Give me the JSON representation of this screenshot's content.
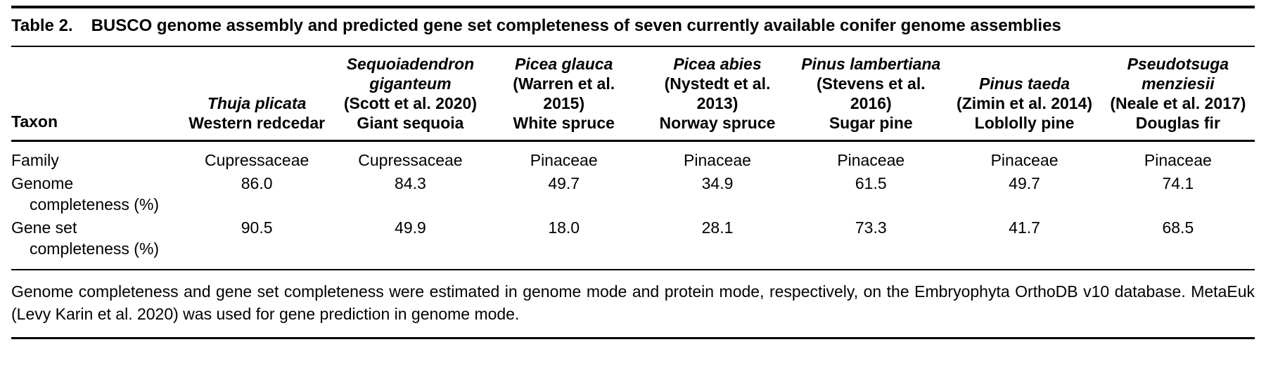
{
  "table": {
    "label": "Table 2.",
    "title": "BUSCO genome assembly and predicted gene set completeness of seven currently available conifer genome assemblies",
    "row_header": "Taxon",
    "columns": [
      {
        "scientific_name": "Thuja plicata",
        "citation": "",
        "common_name": "Western redcedar"
      },
      {
        "scientific_name": "Sequoiadendron giganteum",
        "citation": "(Scott et al. 2020)",
        "common_name": "Giant sequoia"
      },
      {
        "scientific_name": "Picea glauca",
        "citation": "(Warren et al. 2015)",
        "common_name": "White spruce"
      },
      {
        "scientific_name": "Picea abies",
        "citation": "(Nystedt et al. 2013)",
        "common_name": "Norway spruce"
      },
      {
        "scientific_name": "Pinus lambertiana",
        "citation": "(Stevens et al. 2016)",
        "common_name": "Sugar pine"
      },
      {
        "scientific_name": "Pinus taeda",
        "citation": "(Zimin et al. 2014)",
        "common_name": "Loblolly pine"
      },
      {
        "scientific_name": "Pseudotsuga menziesii",
        "citation": "(Neale et al. 2017)",
        "common_name": "Douglas fir"
      }
    ],
    "rows": [
      {
        "label": "Family",
        "values": [
          "Cupressaceae",
          "Cupressaceae",
          "Pinaceae",
          "Pinaceae",
          "Pinaceae",
          "Pinaceae",
          "Pinaceae"
        ]
      },
      {
        "label": "Genome completeness (%)",
        "values": [
          "86.0",
          "84.3",
          "49.7",
          "34.9",
          "61.5",
          "49.7",
          "74.1"
        ]
      },
      {
        "label": "Gene set completeness (%)",
        "values": [
          "90.5",
          "49.9",
          "18.0",
          "28.1",
          "73.3",
          "41.7",
          "68.5"
        ]
      }
    ],
    "footnote": "Genome completeness and gene set completeness were estimated in genome mode and protein mode, respectively, on the Embryophyta OrthoDB v10 database. MetaEuk (Levy Karin et al. 2020) was used for gene prediction in genome mode."
  }
}
